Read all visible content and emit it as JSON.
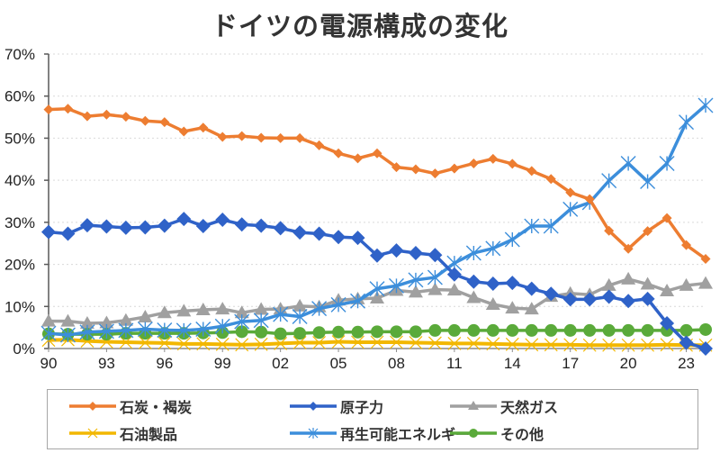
{
  "chart_data": {
    "type": "line",
    "title": "ドイツの電源構成の変化",
    "xlabel": "",
    "ylabel": "",
    "ylim": [
      0,
      70
    ],
    "yticks": [
      "0%",
      "10%",
      "20%",
      "30%",
      "40%",
      "50%",
      "60%",
      "70%"
    ],
    "ytick_values": [
      0,
      10,
      20,
      30,
      40,
      50,
      60,
      70
    ],
    "grid": true,
    "legend_position": "bottom",
    "x": [
      1990,
      1991,
      1992,
      1993,
      1994,
      1995,
      1996,
      1997,
      1998,
      1999,
      2000,
      2001,
      2002,
      2003,
      2004,
      2005,
      2006,
      2007,
      2008,
      2009,
      2010,
      2011,
      2012,
      2013,
      2014,
      2015,
      2016,
      2017,
      2018,
      2019,
      2020,
      2021,
      2022,
      2023,
      2024
    ],
    "xtick_labels": [
      "90",
      "93",
      "96",
      "99",
      "02",
      "05",
      "08",
      "11",
      "14",
      "17",
      "20",
      "23"
    ],
    "xtick_years": [
      1990,
      1993,
      1996,
      1999,
      2002,
      2005,
      2008,
      2011,
      2014,
      2017,
      2020,
      2023
    ],
    "series": [
      {
        "name": "石炭・褐炭",
        "color": "#ED7D31",
        "marker": "diamond",
        "values": [
          56.8,
          57.0,
          55.2,
          55.6,
          55.1,
          54.1,
          53.8,
          51.6,
          52.5,
          50.3,
          50.5,
          50.1,
          50.0,
          50.0,
          48.3,
          46.4,
          45.2,
          46.4,
          43.1,
          42.6,
          41.6,
          42.8,
          44.0,
          45.1,
          43.9,
          42.2,
          40.3,
          37.1,
          35.5,
          28.0,
          23.7,
          27.9,
          31.0,
          24.6,
          21.3
        ]
      },
      {
        "name": "原子力",
        "color": "#2F62C8",
        "marker": "diamond-large",
        "values": [
          27.7,
          27.3,
          29.3,
          29.0,
          28.7,
          28.8,
          29.2,
          30.8,
          29.1,
          30.6,
          29.5,
          29.2,
          28.6,
          27.6,
          27.3,
          26.5,
          26.3,
          22.1,
          23.3,
          22.7,
          22.2,
          17.6,
          15.9,
          15.4,
          15.6,
          14.2,
          13.0,
          11.7,
          11.7,
          12.3,
          11.3,
          11.8,
          6.0,
          1.4,
          0.0
        ]
      },
      {
        "name": "天然ガス",
        "color": "#A0A0A0",
        "marker": "triangle",
        "values": [
          6.5,
          6.5,
          6.0,
          6.1,
          6.7,
          7.5,
          8.5,
          8.9,
          9.2,
          9.4,
          8.5,
          9.3,
          9.4,
          10.1,
          9.9,
          11.5,
          11.8,
          12.0,
          13.8,
          13.4,
          14.0,
          13.9,
          12.1,
          10.5,
          9.6,
          9.4,
          12.4,
          13.1,
          12.8,
          15.0,
          16.5,
          15.3,
          13.7,
          15.0,
          15.5
        ]
      },
      {
        "name": "石油製品",
        "color": "#F2B700",
        "marker": "x",
        "values": [
          2.0,
          2.1,
          1.8,
          1.6,
          1.5,
          1.4,
          1.3,
          1.1,
          1.1,
          1.0,
          0.9,
          1.0,
          1.2,
          1.4,
          1.4,
          1.6,
          1.5,
          1.5,
          1.5,
          1.4,
          1.3,
          1.2,
          1.2,
          1.1,
          1.0,
          0.9,
          0.9,
          0.9,
          0.8,
          0.8,
          0.8,
          0.8,
          0.9,
          0.8,
          0.8
        ]
      },
      {
        "name": "再生可能エネルギー",
        "color": "#3C8EDB",
        "marker": "star",
        "values": [
          3.6,
          3.2,
          3.9,
          4.1,
          4.3,
          4.6,
          4.4,
          4.3,
          4.6,
          5.3,
          6.4,
          6.7,
          8.1,
          7.6,
          9.5,
          10.4,
          11.3,
          14.2,
          14.9,
          16.3,
          16.9,
          20.3,
          22.7,
          23.8,
          25.9,
          29.1,
          29.1,
          33.1,
          34.7,
          39.9,
          44.0,
          39.7,
          44.0,
          53.8,
          57.8
        ]
      },
      {
        "name": "その他",
        "color": "#5AAA3A",
        "marker": "circle",
        "values": [
          3.5,
          3.4,
          3.4,
          3.4,
          3.6,
          3.6,
          3.6,
          3.6,
          3.7,
          3.8,
          4.0,
          3.9,
          3.5,
          3.6,
          3.8,
          3.9,
          3.9,
          4.0,
          4.0,
          4.0,
          4.3,
          4.3,
          4.3,
          4.3,
          4.3,
          4.3,
          4.3,
          4.3,
          4.3,
          4.3,
          4.3,
          4.3,
          4.3,
          4.3,
          4.5
        ]
      }
    ]
  }
}
